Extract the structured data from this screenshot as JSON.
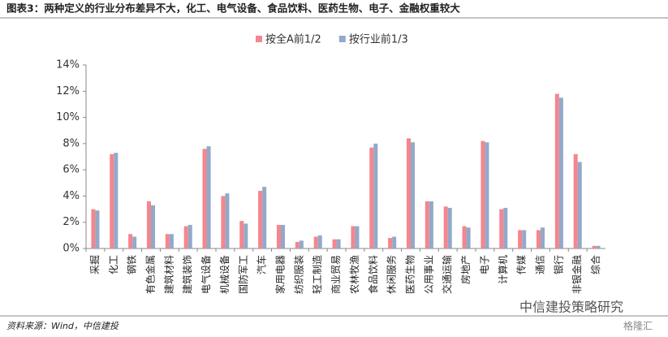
{
  "chart_data": {
    "type": "bar",
    "title": "图表3：两种定义的行业分布差异不大，化工、电气设备、食品饮料、医药生物、电子、金融权重较大",
    "source": "资料来源：Wind，中信建投",
    "watermark": "中信建投策略研究",
    "watermark2": "格隆汇",
    "categories": [
      "采掘",
      "化工",
      "钢铁",
      "有色金属",
      "建筑材料",
      "建筑装饰",
      "电气设备",
      "机械设备",
      "国防军工",
      "汽车",
      "家用电器",
      "纺织服装",
      "轻工制造",
      "商业贸易",
      "农林牧渔",
      "食品饮料",
      "休闲服务",
      "医药生物",
      "公用事业",
      "交通运输",
      "房地产",
      "电子",
      "计算机",
      "传媒",
      "通信",
      "银行",
      "非银金融",
      "综合"
    ],
    "series": [
      {
        "name": "按全A前1/2",
        "color": "#f4868e",
        "values": [
          3.0,
          7.2,
          1.1,
          3.6,
          1.1,
          1.7,
          7.6,
          4.0,
          2.1,
          4.4,
          1.8,
          0.5,
          0.9,
          0.7,
          1.7,
          7.7,
          0.8,
          8.4,
          3.6,
          3.2,
          1.7,
          8.2,
          3.0,
          1.4,
          1.4,
          11.8,
          7.2,
          0.2
        ]
      },
      {
        "name": "按行业前1/3",
        "color": "#93a9c9",
        "values": [
          2.9,
          7.3,
          0.9,
          3.3,
          1.1,
          1.8,
          7.8,
          4.2,
          1.9,
          4.7,
          1.8,
          0.6,
          1.0,
          0.7,
          1.7,
          8.0,
          0.9,
          8.1,
          3.6,
          3.1,
          1.6,
          8.1,
          3.1,
          1.4,
          1.6,
          11.5,
          6.6,
          0.2
        ]
      }
    ],
    "ylim": [
      0,
      14
    ],
    "yticks": [
      {
        "value": 0,
        "label": "0%"
      },
      {
        "value": 2,
        "label": "2%"
      },
      {
        "value": 4,
        "label": "4%"
      },
      {
        "value": 6,
        "label": "6%"
      },
      {
        "value": 8,
        "label": "8%"
      },
      {
        "value": 10,
        "label": "10%"
      },
      {
        "value": 12,
        "label": "12%"
      },
      {
        "value": 14,
        "label": "14%"
      }
    ],
    "legend": "top"
  }
}
